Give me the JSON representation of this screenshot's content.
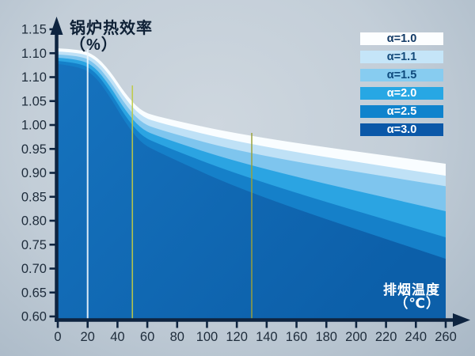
{
  "chart_data": {
    "type": "area",
    "title_y": {
      "line1": "锅炉热效率",
      "line2": "（%）"
    },
    "title_x": {
      "line1": "排烟温度",
      "line2": "（℃）"
    },
    "x_axis": {
      "min": 0,
      "max": 260,
      "tick_step": 20,
      "tick_labels": [
        "0",
        "20",
        "40",
        "60",
        "80",
        "100",
        "120",
        "140",
        "160",
        "180",
        "200",
        "220",
        "240",
        "260"
      ]
    },
    "y_axis": {
      "tick_labels_top_to_bottom": [
        "1.15",
        "1.10",
        "1.10",
        "1.05",
        "1.00",
        "0.95",
        "0.90",
        "0.85",
        "0.80",
        "0.75",
        "0.70",
        "0.65",
        "0.60"
      ],
      "note": "labels exactly as printed in source; '1.10' appears twice"
    },
    "axis_color": "#0e2440",
    "label_color": "#1e2c3b",
    "series": [
      {
        "name": "α=1.0",
        "alpha": 1.0,
        "fill": "#f9fdff",
        "points": [
          [
            0,
            1.118
          ],
          [
            15,
            1.116
          ],
          [
            25,
            1.105
          ],
          [
            35,
            1.075
          ],
          [
            45,
            1.032
          ],
          [
            55,
            1.0
          ],
          [
            65,
            0.988
          ],
          [
            130,
            0.948
          ],
          [
            260,
            0.897
          ]
        ]
      },
      {
        "name": "α=1.1",
        "alpha": 1.1,
        "fill": "#bfe1f6",
        "points": [
          [
            0,
            1.112
          ],
          [
            15,
            1.11
          ],
          [
            25,
            1.098
          ],
          [
            35,
            1.066
          ],
          [
            45,
            1.022
          ],
          [
            55,
            0.99
          ],
          [
            65,
            0.977
          ],
          [
            130,
            0.932
          ],
          [
            260,
            0.874
          ]
        ]
      },
      {
        "name": "α=1.5",
        "alpha": 1.5,
        "fill": "#7ec5ee",
        "points": [
          [
            0,
            1.106
          ],
          [
            15,
            1.104
          ],
          [
            25,
            1.09
          ],
          [
            35,
            1.056
          ],
          [
            45,
            1.011
          ],
          [
            55,
            0.978
          ],
          [
            65,
            0.964
          ],
          [
            130,
            0.914
          ],
          [
            260,
            0.854
          ]
        ]
      },
      {
        "name": "α=2.0",
        "alpha": 2.0,
        "fill": "#2ba4e2",
        "points": [
          [
            0,
            1.1
          ],
          [
            15,
            1.097
          ],
          [
            25,
            1.082
          ],
          [
            35,
            1.046
          ],
          [
            45,
            1.0
          ],
          [
            55,
            0.966
          ],
          [
            65,
            0.951
          ],
          [
            130,
            0.891
          ],
          [
            260,
            0.806
          ]
        ]
      },
      {
        "name": "α=2.5",
        "alpha": 2.5,
        "fill": "#1580c9",
        "points": [
          [
            0,
            1.094
          ],
          [
            15,
            1.09
          ],
          [
            25,
            1.074
          ],
          [
            35,
            1.036
          ],
          [
            45,
            0.989
          ],
          [
            55,
            0.953
          ],
          [
            65,
            0.937
          ],
          [
            130,
            0.866
          ],
          [
            260,
            0.756
          ]
        ]
      },
      {
        "name": "α=3.0",
        "alpha": 3.0,
        "fill": "#1673be",
        "fill2": "#0c5fa9",
        "points": [
          [
            0,
            1.088
          ],
          [
            15,
            1.083
          ],
          [
            25,
            1.065
          ],
          [
            35,
            1.025
          ],
          [
            45,
            0.977
          ],
          [
            55,
            0.939
          ],
          [
            65,
            0.922
          ],
          [
            130,
            0.838
          ],
          [
            260,
            0.715
          ]
        ]
      }
    ],
    "markers": [
      {
        "x": 20,
        "color": "#eef7fd",
        "width": 2,
        "top_value": 1.117
      },
      {
        "x": 50,
        "color": "#bfca45",
        "width": 1.6,
        "top_value": 1.047
      },
      {
        "x": 130,
        "color": "#9aa139",
        "width": 1.6,
        "top_value": 0.956
      }
    ]
  },
  "legend": {
    "items": [
      {
        "label": "α=1.0",
        "color": "#fcfeff",
        "text_color": "#123a66"
      },
      {
        "label": "α=1.1",
        "color": "#c5e5f8",
        "text_color": "#134a7a"
      },
      {
        "label": "α=1.5",
        "color": "#87ccf0",
        "text_color": "#0f4a7d"
      },
      {
        "label": "α=2.0",
        "color": "#27a7e4",
        "text_color": "#ffffff"
      },
      {
        "label": "α=2.5",
        "color": "#0f83cd",
        "text_color": "#ffffff"
      },
      {
        "label": "α=3.0",
        "color": "#0b58a8",
        "text_color": "#ffffff"
      }
    ]
  }
}
